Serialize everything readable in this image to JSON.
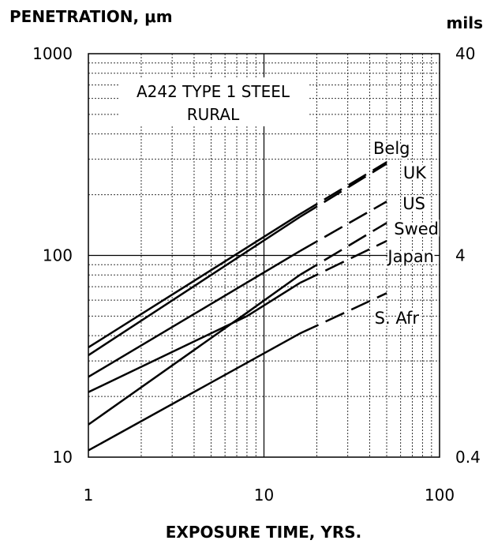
{
  "chart_data": {
    "type": "line",
    "title_lines": [
      "A242 TYPE 1 STEEL",
      "RURAL"
    ],
    "ylabel": "PENETRATION, μm",
    "y2label": "mils",
    "xlabel": "EXPOSURE TIME, YRS.",
    "x_scale": "log",
    "y_scale": "log",
    "xlim": [
      1,
      100
    ],
    "ylim": [
      10,
      1000
    ],
    "y2lim": [
      0.4,
      40
    ],
    "x_ticks": [
      "1",
      "10",
      "100"
    ],
    "y_ticks": [
      "10",
      "100",
      "1000"
    ],
    "y2_ticks": [
      "0.4",
      "4",
      "40"
    ],
    "grid": true,
    "measured_until_years": 16,
    "series": [
      {
        "name": "Belg",
        "points": [
          [
            1,
            35
          ],
          [
            16,
            160
          ],
          [
            50,
            290
          ]
        ]
      },
      {
        "name": "UK",
        "points": [
          [
            1,
            32
          ],
          [
            16,
            155
          ],
          [
            50,
            285
          ]
        ]
      },
      {
        "name": "US",
        "points": [
          [
            1,
            25
          ],
          [
            16,
            105
          ],
          [
            50,
            185
          ]
        ]
      },
      {
        "name": "Swed",
        "points": [
          [
            1,
            14.5
          ],
          [
            8,
            52
          ],
          [
            16,
            80
          ],
          [
            50,
            145
          ]
        ]
      },
      {
        "name": "Japan",
        "points": [
          [
            1,
            21
          ],
          [
            8,
            50
          ],
          [
            16,
            73
          ],
          [
            50,
            118
          ]
        ]
      },
      {
        "name": "S. Afr",
        "points": [
          [
            1,
            10.8
          ],
          [
            16,
            41
          ],
          [
            50,
            65
          ]
        ]
      }
    ]
  }
}
